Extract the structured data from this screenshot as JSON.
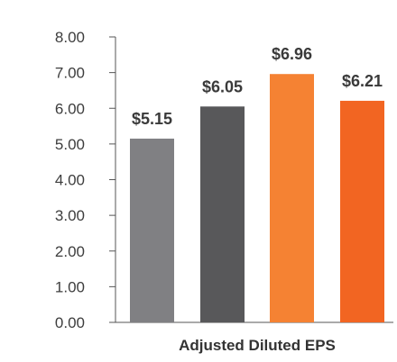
{
  "chart_data": {
    "type": "bar",
    "xlabel": "Adjusted Diluted EPS",
    "ylabel": "",
    "ylim": [
      0,
      8
    ],
    "yticks": [
      "0.00",
      "1.00",
      "2.00",
      "3.00",
      "4.00",
      "5.00",
      "6.00",
      "7.00",
      "8.00"
    ],
    "grid": false,
    "values": [
      5.15,
      6.05,
      6.96,
      6.21
    ],
    "data_labels": [
      "$5.15",
      "$6.05",
      "$6.96",
      "$6.21"
    ],
    "colors": [
      "#808083",
      "#58585a",
      "#f58233",
      "#f26522"
    ]
  }
}
